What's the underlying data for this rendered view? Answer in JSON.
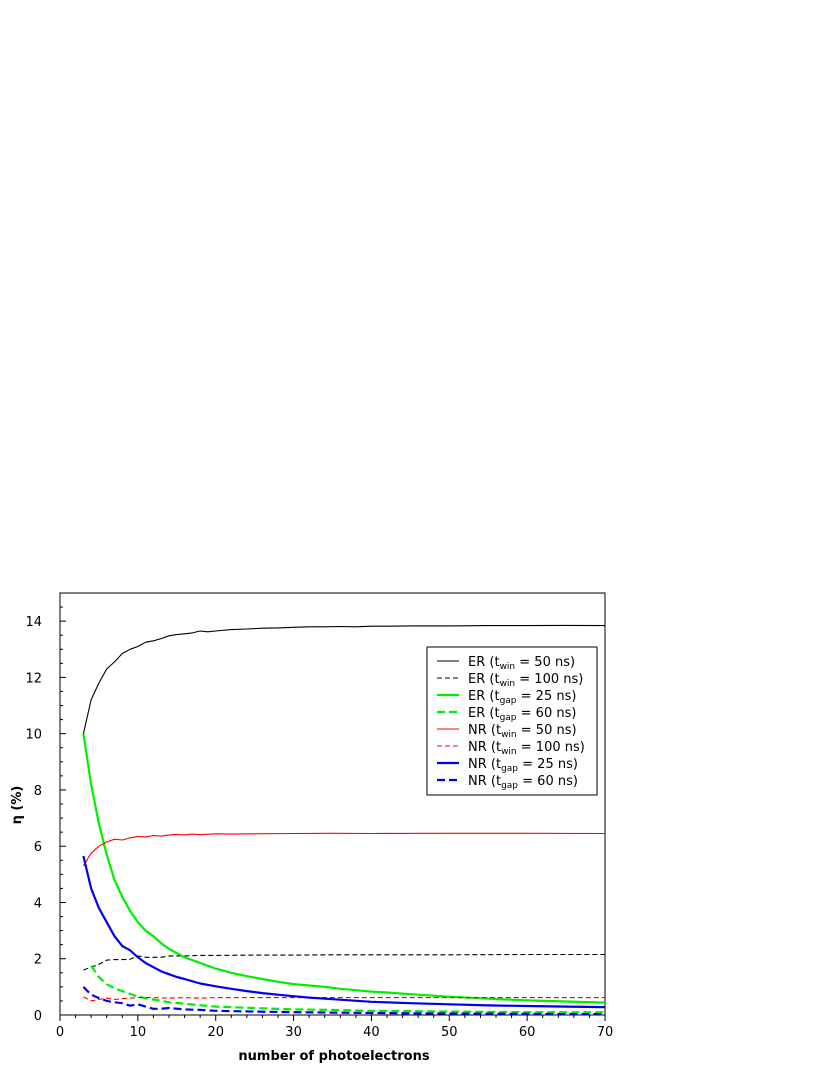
{
  "chart_data": {
    "type": "line",
    "xlabel": "number of photoelectrons",
    "ylabel": "η (%)",
    "xlim": [
      0,
      70
    ],
    "ylim": [
      0,
      15
    ],
    "xticks": [
      0,
      10,
      20,
      30,
      40,
      50,
      60,
      70
    ],
    "yticks": [
      0,
      2,
      4,
      6,
      8,
      10,
      12,
      14
    ],
    "grid": false,
    "legend_position": "top-right",
    "series": [
      {
        "name": "ER (t_win = 50 ns)",
        "legend": {
          "prefix": "ER (t",
          "sub": "win",
          "suffix": " = 50 ns)"
        },
        "color": "#000000",
        "dash": "solid",
        "width": "thin",
        "x": [
          3,
          4,
          5,
          6,
          7,
          8,
          9,
          10,
          11,
          12,
          13,
          14,
          15,
          16,
          17,
          18,
          19,
          20,
          22,
          24,
          26,
          28,
          30,
          32,
          34,
          36,
          38,
          40,
          42,
          45,
          50,
          55,
          60,
          65,
          70
        ],
        "y": [
          10.0,
          11.2,
          11.8,
          12.3,
          12.55,
          12.85,
          13.0,
          13.1,
          13.25,
          13.3,
          13.38,
          13.48,
          13.52,
          13.55,
          13.58,
          13.65,
          13.62,
          13.65,
          13.7,
          13.72,
          13.75,
          13.76,
          13.78,
          13.8,
          13.8,
          13.81,
          13.8,
          13.82,
          13.82,
          13.83,
          13.83,
          13.84,
          13.84,
          13.85,
          13.84
        ]
      },
      {
        "name": "ER (t_win = 100 ns)",
        "legend": {
          "prefix": "ER (t",
          "sub": "win",
          "suffix": " = 100 ns)"
        },
        "color": "#000000",
        "dash": "dashed",
        "width": "thin",
        "x": [
          3,
          4,
          5,
          6,
          7,
          8,
          9,
          10,
          11,
          12,
          13,
          14,
          16,
          18,
          20,
          25,
          30,
          35,
          40,
          50,
          60,
          70
        ],
        "y": [
          1.6,
          1.7,
          1.8,
          1.95,
          1.97,
          1.97,
          1.98,
          2.1,
          2.05,
          2.05,
          2.05,
          2.1,
          2.1,
          2.12,
          2.12,
          2.13,
          2.13,
          2.14,
          2.14,
          2.14,
          2.15,
          2.15
        ]
      },
      {
        "name": "ER (t_gap = 25 ns)",
        "legend": {
          "prefix": "ER (t",
          "sub": "gap",
          "suffix": " = 25 ns)"
        },
        "color": "#00ee00",
        "dash": "solid",
        "width": "thick",
        "x": [
          3,
          4,
          5,
          6,
          7,
          8,
          9,
          10,
          11,
          12,
          13,
          14,
          15,
          16,
          17,
          18,
          19,
          20,
          22,
          24,
          26,
          28,
          30,
          32,
          34,
          36,
          38,
          40,
          42,
          45,
          50,
          55,
          60,
          65,
          70
        ],
        "y": [
          10.0,
          8.2,
          6.8,
          5.7,
          4.8,
          4.2,
          3.7,
          3.3,
          3.0,
          2.8,
          2.55,
          2.35,
          2.2,
          2.05,
          1.95,
          1.85,
          1.75,
          1.65,
          1.5,
          1.38,
          1.28,
          1.18,
          1.1,
          1.05,
          1.0,
          0.93,
          0.88,
          0.83,
          0.8,
          0.74,
          0.65,
          0.58,
          0.52,
          0.48,
          0.44
        ]
      },
      {
        "name": "ER (t_gap = 60 ns)",
        "legend": {
          "prefix": "ER (t",
          "sub": "gap",
          "suffix": " = 60 ns)"
        },
        "color": "#00ee00",
        "dash": "dashed",
        "width": "thick",
        "x": [
          4,
          5,
          6,
          7,
          8,
          9,
          10,
          12,
          14,
          16,
          18,
          20,
          25,
          30,
          35,
          40,
          50,
          60,
          70
        ],
        "y": [
          1.75,
          1.35,
          1.1,
          0.95,
          0.85,
          0.75,
          0.65,
          0.55,
          0.45,
          0.4,
          0.35,
          0.3,
          0.25,
          0.2,
          0.18,
          0.15,
          0.12,
          0.1,
          0.1
        ]
      },
      {
        "name": "NR (t_win = 50 ns)",
        "legend": {
          "prefix": "NR (t",
          "sub": "win",
          "suffix": " = 50 ns)"
        },
        "color": "#ff0000",
        "dash": "solid",
        "width": "thin",
        "x": [
          3,
          4,
          5,
          6,
          7,
          8,
          9,
          10,
          11,
          12,
          13,
          14,
          15,
          16,
          17,
          18,
          20,
          22,
          25,
          30,
          35,
          40,
          50,
          60,
          70
        ],
        "y": [
          5.3,
          5.75,
          6.0,
          6.15,
          6.25,
          6.22,
          6.3,
          6.35,
          6.33,
          6.38,
          6.36,
          6.4,
          6.42,
          6.4,
          6.43,
          6.41,
          6.44,
          6.43,
          6.44,
          6.45,
          6.46,
          6.45,
          6.46,
          6.46,
          6.45
        ]
      },
      {
        "name": "NR (t_win = 100 ns)",
        "legend": {
          "prefix": "NR (t",
          "sub": "win",
          "suffix": " = 100 ns)"
        },
        "color": "#ff0000",
        "dash": "dashed",
        "width": "thin",
        "x": [
          3,
          4,
          5,
          6,
          7,
          8,
          9,
          10,
          12,
          14,
          16,
          18,
          20,
          25,
          30,
          40,
          50,
          60,
          70
        ],
        "y": [
          0.65,
          0.5,
          0.55,
          0.6,
          0.55,
          0.58,
          0.6,
          0.62,
          0.62,
          0.6,
          0.62,
          0.6,
          0.62,
          0.62,
          0.62,
          0.62,
          0.62,
          0.62,
          0.62
        ]
      },
      {
        "name": "NR (t_gap = 25 ns)",
        "legend": {
          "prefix": "NR (t",
          "sub": "gap",
          "suffix": " = 25 ns)"
        },
        "color": "#0000ee",
        "dash": "solid",
        "width": "thick",
        "x": [
          3,
          4,
          5,
          6,
          7,
          8,
          9,
          10,
          11,
          12,
          13,
          14,
          15,
          16,
          18,
          20,
          22,
          24,
          26,
          28,
          30,
          32,
          35,
          40,
          45,
          50,
          55,
          60,
          65,
          70
        ],
        "y": [
          5.65,
          4.5,
          3.8,
          3.3,
          2.8,
          2.45,
          2.3,
          2.05,
          1.85,
          1.7,
          1.55,
          1.45,
          1.35,
          1.28,
          1.12,
          1.02,
          0.93,
          0.85,
          0.78,
          0.72,
          0.67,
          0.62,
          0.56,
          0.47,
          0.42,
          0.38,
          0.34,
          0.32,
          0.3,
          0.28
        ]
      },
      {
        "name": "NR (t_gap = 60 ns)",
        "legend": {
          "prefix": "NR (t",
          "sub": "gap",
          "suffix": " = 60 ns)"
        },
        "color": "#0000ee",
        "dash": "dashed",
        "width": "thick",
        "x": [
          3,
          4,
          5,
          6,
          7,
          8,
          9,
          10,
          11,
          12,
          13,
          14,
          16,
          18,
          20,
          25,
          30,
          40,
          50,
          60,
          70
        ],
        "y": [
          1.0,
          0.72,
          0.6,
          0.5,
          0.45,
          0.42,
          0.33,
          0.38,
          0.3,
          0.22,
          0.22,
          0.25,
          0.2,
          0.18,
          0.15,
          0.12,
          0.1,
          0.07,
          0.05,
          0.04,
          0.03
        ]
      }
    ]
  }
}
